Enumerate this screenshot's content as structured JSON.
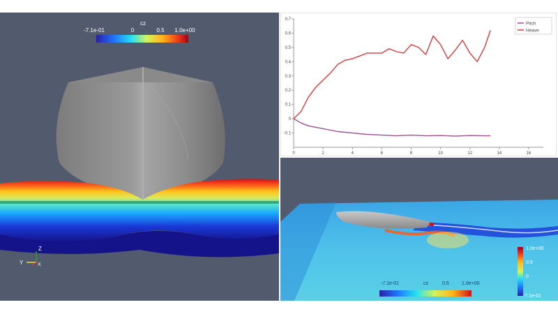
{
  "left_view": {
    "colorbar": {
      "title": "cz",
      "labels": [
        "-7.1e-01",
        "0",
        "0.5",
        "1.0e+00"
      ]
    },
    "axes": {
      "z": "Z",
      "y": "Y",
      "x": "X"
    }
  },
  "chart_data": {
    "type": "line",
    "xlim": [
      0,
      17
    ],
    "ylim": [
      -0.2,
      0.7
    ],
    "x_ticks": [
      "0",
      "2",
      "4",
      "6",
      "8",
      "10",
      "12",
      "14",
      "16"
    ],
    "y_ticks": [
      "0.7",
      "0.6",
      "0.5",
      "0.4",
      "0.3",
      "0.2",
      "0.1",
      "0",
      "-0.1"
    ],
    "legend_position": "top-right",
    "series": [
      {
        "name": "Pitch",
        "color": "#9b4f96",
        "points": [
          [
            0,
            0
          ],
          [
            0.5,
            -0.03
          ],
          [
            1,
            -0.05
          ],
          [
            2,
            -0.07
          ],
          [
            3,
            -0.09
          ],
          [
            4,
            -0.1
          ],
          [
            5,
            -0.11
          ],
          [
            6,
            -0.115
          ],
          [
            7,
            -0.12
          ],
          [
            8,
            -0.115
          ],
          [
            9,
            -0.12
          ],
          [
            10,
            -0.118
          ],
          [
            11,
            -0.122
          ],
          [
            12,
            -0.118
          ],
          [
            13,
            -0.12
          ],
          [
            13.4,
            -0.12
          ]
        ]
      },
      {
        "name": "Heave",
        "color": "#d83a3a",
        "points": [
          [
            0,
            0
          ],
          [
            0.5,
            0.05
          ],
          [
            1,
            0.15
          ],
          [
            1.5,
            0.22
          ],
          [
            2,
            0.27
          ],
          [
            2.5,
            0.32
          ],
          [
            3,
            0.38
          ],
          [
            3.5,
            0.41
          ],
          [
            4,
            0.42
          ],
          [
            4.5,
            0.44
          ],
          [
            5,
            0.46
          ],
          [
            5.5,
            0.46
          ],
          [
            6,
            0.46
          ],
          [
            6.5,
            0.49
          ],
          [
            7,
            0.47
          ],
          [
            7.5,
            0.46
          ],
          [
            8,
            0.52
          ],
          [
            8.5,
            0.5
          ],
          [
            9,
            0.45
          ],
          [
            9.5,
            0.58
          ],
          [
            10,
            0.52
          ],
          [
            10.5,
            0.42
          ],
          [
            11,
            0.48
          ],
          [
            11.5,
            0.55
          ],
          [
            12,
            0.46
          ],
          [
            12.5,
            0.4
          ],
          [
            13,
            0.5
          ],
          [
            13.4,
            0.62
          ]
        ]
      }
    ]
  },
  "right_view": {
    "colorbar_vertical": {
      "labels": [
        "1.0e+00",
        "0.5",
        "0",
        "-7.1e-01"
      ]
    },
    "colorbar_horizontal": {
      "labels": [
        "-7.1e-01",
        "cz",
        "0.5",
        "1.0e+00"
      ]
    }
  },
  "colors": {
    "background": "#525a6e",
    "hull": "#909090",
    "accent_red": "#d83a3a",
    "accent_purple": "#9b4f96"
  }
}
